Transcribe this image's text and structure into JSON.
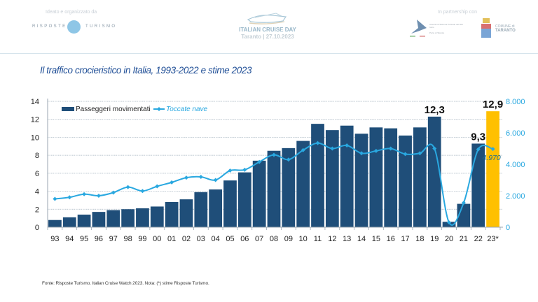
{
  "header": {
    "left_caption": "Ideato e organizzato da",
    "left_logo_left": "RISPOSTE",
    "left_logo_right": "TURISMO",
    "event_title": "ITALIAN CRUISE DAY",
    "event_subtitle": "Taranto | 27.10.2023",
    "right_caption": "In partnership con",
    "port_authority_text": "Autorità di Sistema Portuale del Mar Ionio",
    "port_authority_sub": "Porto di Taranto",
    "comune_line1": "COMUNE di",
    "comune_line2": "TARANTO"
  },
  "footnote": "Fonte: Risposte Turismo. Italian Cruise Watch 2023. Nota: (*) stime Risposte Turismo.",
  "colors": {
    "bar": "#1f4e79",
    "bar_estimate": "#ffc000",
    "line": "#29a8e0",
    "title": "#1f4e96",
    "right_axis": "#29a8e0"
  },
  "chart_data": {
    "type": "bar",
    "title": "Il traffico crocieristico in Italia, 1993-2022 e stime 2023",
    "xlabel": "",
    "ylabel": "",
    "categories": [
      "93",
      "94",
      "95",
      "96",
      "97",
      "98",
      "99",
      "00",
      "01",
      "02",
      "03",
      "04",
      "05",
      "06",
      "07",
      "08",
      "09",
      "10",
      "11",
      "12",
      "13",
      "14",
      "15",
      "16",
      "17",
      "18",
      "19",
      "20",
      "21",
      "22",
      "23*"
    ],
    "ylim": [
      0,
      14
    ],
    "yticks": [
      "0",
      "2",
      "4",
      "6",
      "8",
      "10",
      "12",
      "14"
    ],
    "y2lim": [
      0,
      8000
    ],
    "y2ticks": [
      "0",
      "2.000",
      "4.000",
      "6.000",
      "8.000"
    ],
    "grid": true,
    "legend": "top-left",
    "series": [
      {
        "name": "Passeggeri movimentati",
        "type": "bar",
        "axis": "left",
        "values": [
          0.8,
          1.1,
          1.4,
          1.7,
          1.9,
          2.0,
          2.1,
          2.3,
          2.8,
          3.1,
          3.9,
          4.2,
          5.2,
          6.1,
          7.4,
          8.5,
          8.8,
          9.6,
          11.5,
          10.8,
          11.3,
          10.4,
          11.1,
          11.0,
          10.2,
          11.1,
          12.3,
          0.6,
          2.6,
          9.3,
          12.9
        ],
        "highlight_last": true
      },
      {
        "name": "Toccate nave",
        "type": "line",
        "axis": "right",
        "values": [
          1800,
          1900,
          2100,
          2000,
          2200,
          2550,
          2300,
          2600,
          2850,
          3150,
          3200,
          3000,
          3600,
          3650,
          4150,
          4600,
          4300,
          4900,
          5350,
          5000,
          5200,
          4700,
          4850,
          5000,
          4650,
          4700,
          5000,
          300,
          1550,
          4950,
          4970
        ]
      }
    ],
    "annotations": [
      {
        "category": "19",
        "series": "Passeggeri movimentati",
        "text": "12,3"
      },
      {
        "category": "22",
        "series": "Passeggeri movimentati",
        "text": "9,3"
      },
      {
        "category": "23*",
        "series": "Passeggeri movimentati",
        "text": "12,9"
      },
      {
        "category": "23*",
        "series": "Toccate nave",
        "text": "4.970"
      }
    ]
  }
}
